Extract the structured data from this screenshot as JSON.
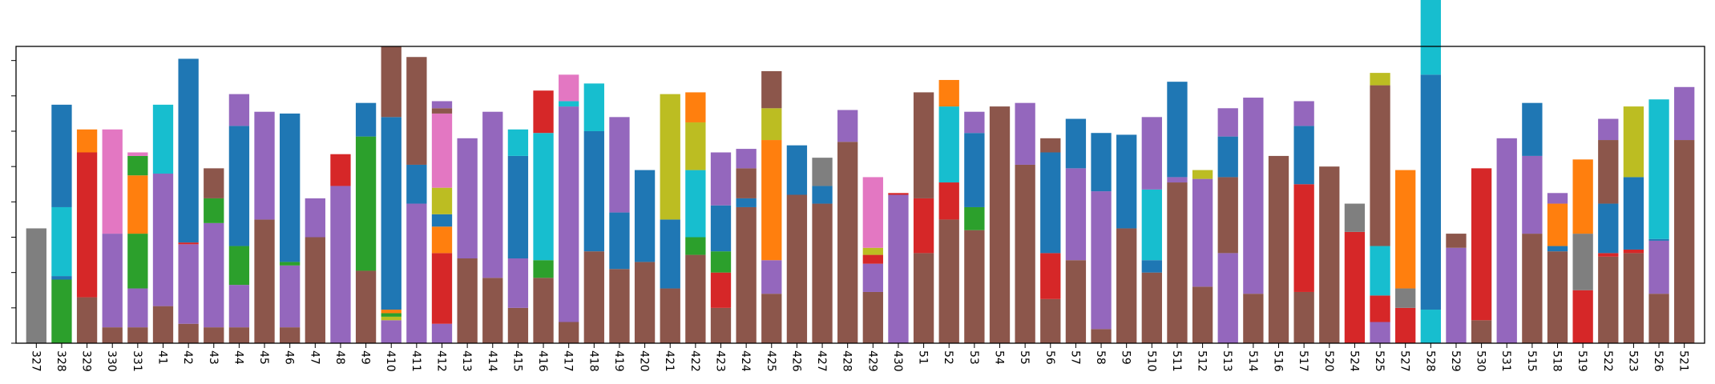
{
  "chart_data": {
    "type": "bar",
    "stacked": true,
    "categories": [
      "327",
      "328",
      "329",
      "330",
      "331",
      "41",
      "42",
      "43",
      "44",
      "45",
      "46",
      "47",
      "48",
      "49",
      "410",
      "411",
      "412",
      "413",
      "414",
      "415",
      "416",
      "417",
      "418",
      "419",
      "420",
      "421",
      "422",
      "423",
      "424",
      "425",
      "426",
      "427",
      "428",
      "429",
      "430",
      "51",
      "52",
      "53",
      "54",
      "55",
      "56",
      "57",
      "58",
      "59",
      "510",
      "511",
      "512",
      "513",
      "514",
      "516",
      "517",
      "520",
      "524",
      "525",
      "527",
      "528",
      "529",
      "530",
      "531",
      "515",
      "518",
      "519",
      "522",
      "523",
      "526",
      "521"
    ],
    "ylim": [
      0,
      0.84
    ],
    "y_tick_labels_visible": false,
    "y_ticks": [
      0,
      0.1,
      0.2,
      0.3,
      0.4,
      0.5,
      0.6,
      0.7,
      0.8
    ],
    "grid": false,
    "legend": "none",
    "colors": {
      "blue": "#1f77b4",
      "orange": "#ff7f0e",
      "green": "#2ca02c",
      "red": "#d62728",
      "purple": "#9467bd",
      "brown": "#8c564b",
      "pink": "#e377c2",
      "gray": "#7f7f7f",
      "olive": "#bcbd22",
      "cyan": "#17becf"
    },
    "stacks": [
      [
        [
          "gray",
          0.325
        ]
      ],
      [
        [
          "green",
          0.18
        ],
        [
          "blue",
          0.01
        ],
        [
          "cyan",
          0.195
        ],
        [
          "blue",
          0.29
        ]
      ],
      [
        [
          "brown",
          0.13
        ],
        [
          "red",
          0.41
        ],
        [
          "orange",
          0.065
        ]
      ],
      [
        [
          "brown",
          0.045
        ],
        [
          "purple",
          0.265
        ],
        [
          "pink",
          0.295
        ]
      ],
      [
        [
          "brown",
          0.045
        ],
        [
          "purple",
          0.11
        ],
        [
          "green",
          0.155
        ],
        [
          "orange",
          0.165
        ],
        [
          "green",
          0.055
        ],
        [
          "pink",
          0.01
        ]
      ],
      [
        [
          "brown",
          0.105
        ],
        [
          "purple",
          0.375
        ],
        [
          "cyan",
          0.195
        ]
      ],
      [
        [
          "brown",
          0.055
        ],
        [
          "purple",
          0.225
        ],
        [
          "red",
          0.005
        ],
        [
          "blue",
          0.52
        ]
      ],
      [
        [
          "brown",
          0.045
        ],
        [
          "purple",
          0.295
        ],
        [
          "green",
          0.07
        ],
        [
          "brown",
          0.085
        ]
      ],
      [
        [
          "brown",
          0.045
        ],
        [
          "purple",
          0.12
        ],
        [
          "green",
          0.11
        ],
        [
          "blue",
          0.34
        ],
        [
          "purple",
          0.09
        ]
      ],
      [
        [
          "brown",
          0.35
        ],
        [
          "purple",
          0.305
        ]
      ],
      [
        [
          "brown",
          0.045
        ],
        [
          "purple",
          0.175
        ],
        [
          "green",
          0.01
        ],
        [
          "blue",
          0.42
        ]
      ],
      [
        [
          "brown",
          0.3
        ],
        [
          "purple",
          0.11
        ]
      ],
      [
        [
          "purple",
          0.445
        ],
        [
          "red",
          0.09
        ]
      ],
      [
        [
          "brown",
          0.205
        ],
        [
          "green",
          0.38
        ],
        [
          "blue",
          0.095
        ]
      ],
      [
        [
          "purple",
          0.065
        ],
        [
          "olive",
          0.01
        ],
        [
          "green",
          0.01
        ],
        [
          "orange",
          0.01
        ],
        [
          "blue",
          0.545
        ],
        [
          "brown",
          0.2
        ]
      ],
      [
        [
          "purple",
          0.395
        ],
        [
          "blue",
          0.11
        ],
        [
          "brown",
          0.305
        ]
      ],
      [
        [
          "purple",
          0.055
        ],
        [
          "red",
          0.2
        ],
        [
          "orange",
          0.075
        ],
        [
          "blue",
          0.035
        ],
        [
          "olive",
          0.075
        ],
        [
          "pink",
          0.21
        ],
        [
          "brown",
          0.015
        ],
        [
          "purple",
          0.02
        ]
      ],
      [
        [
          "brown",
          0.24
        ],
        [
          "purple",
          0.34
        ]
      ],
      [
        [
          "brown",
          0.185
        ],
        [
          "purple",
          0.47
        ]
      ],
      [
        [
          "brown",
          0.1
        ],
        [
          "purple",
          0.14
        ],
        [
          "blue",
          0.29
        ],
        [
          "cyan",
          0.075
        ]
      ],
      [
        [
          "brown",
          0.185
        ],
        [
          "green",
          0.05
        ],
        [
          "cyan",
          0.36
        ],
        [
          "red",
          0.12
        ]
      ],
      [
        [
          "brown",
          0.06
        ],
        [
          "purple",
          0.61
        ],
        [
          "cyan",
          0.015
        ],
        [
          "pink",
          0.075
        ]
      ],
      [
        [
          "brown",
          0.26
        ],
        [
          "blue",
          0.34
        ],
        [
          "cyan",
          0.135
        ]
      ],
      [
        [
          "brown",
          0.21
        ],
        [
          "blue",
          0.16
        ],
        [
          "purple",
          0.27
        ]
      ],
      [
        [
          "brown",
          0.23
        ],
        [
          "blue",
          0.26
        ]
      ],
      [
        [
          "brown",
          0.155
        ],
        [
          "blue",
          0.195
        ],
        [
          "olive",
          0.355
        ]
      ],
      [
        [
          "brown",
          0.25
        ],
        [
          "green",
          0.05
        ],
        [
          "cyan",
          0.19
        ],
        [
          "olive",
          0.135
        ],
        [
          "orange",
          0.085
        ]
      ],
      [
        [
          "brown",
          0.1
        ],
        [
          "red",
          0.1
        ],
        [
          "green",
          0.06
        ],
        [
          "blue",
          0.13
        ],
        [
          "purple",
          0.15
        ]
      ],
      [
        [
          "brown",
          0.385
        ],
        [
          "blue",
          0.025
        ],
        [
          "brown",
          0.085
        ],
        [
          "purple",
          0.055
        ]
      ],
      [
        [
          "brown",
          0.14
        ],
        [
          "purple",
          0.095
        ],
        [
          "orange",
          0.34
        ],
        [
          "olive",
          0.09
        ],
        [
          "brown",
          0.105
        ]
      ],
      [
        [
          "brown",
          0.42
        ],
        [
          "blue",
          0.14
        ]
      ],
      [
        [
          "brown",
          0.395
        ],
        [
          "blue",
          0.05
        ],
        [
          "gray",
          0.08
        ]
      ],
      [
        [
          "brown",
          0.57
        ],
        [
          "purple",
          0.09
        ]
      ],
      [
        [
          "brown",
          0.145
        ],
        [
          "purple",
          0.08
        ],
        [
          "red",
          0.025
        ],
        [
          "olive",
          0.02
        ],
        [
          "pink",
          0.2
        ]
      ],
      [
        [
          "purple",
          0.42
        ],
        [
          "red",
          0.005
        ]
      ],
      [
        [
          "brown",
          0.255
        ],
        [
          "red",
          0.155
        ],
        [
          "brown",
          0.3
        ]
      ],
      [
        [
          "brown",
          0.35
        ],
        [
          "red",
          0.105
        ],
        [
          "cyan",
          0.215
        ],
        [
          "orange",
          0.075
        ]
      ],
      [
        [
          "brown",
          0.32
        ],
        [
          "green",
          0.065
        ],
        [
          "blue",
          0.21
        ],
        [
          "purple",
          0.06
        ]
      ],
      [
        [
          "brown",
          0.67
        ]
      ],
      [
        [
          "brown",
          0.505
        ],
        [
          "purple",
          0.175
        ]
      ],
      [
        [
          "brown",
          0.125
        ],
        [
          "red",
          0.13
        ],
        [
          "blue",
          0.285
        ],
        [
          "brown",
          0.04
        ]
      ],
      [
        [
          "brown",
          0.235
        ],
        [
          "purple",
          0.26
        ],
        [
          "blue",
          0.14
        ]
      ],
      [
        [
          "brown",
          0.04
        ],
        [
          "purple",
          0.39
        ],
        [
          "blue",
          0.165
        ]
      ],
      [
        [
          "brown",
          0.325
        ],
        [
          "blue",
          0.265
        ]
      ],
      [
        [
          "brown",
          0.2
        ],
        [
          "blue",
          0.035
        ],
        [
          "cyan",
          0.2
        ],
        [
          "purple",
          0.205
        ]
      ],
      [
        [
          "brown",
          0.455
        ],
        [
          "purple",
          0.015
        ],
        [
          "blue",
          0.27
        ]
      ],
      [
        [
          "brown",
          0.16
        ],
        [
          "purple",
          0.305
        ],
        [
          "olive",
          0.025
        ]
      ],
      [
        [
          "purple",
          0.255
        ],
        [
          "brown",
          0.215
        ],
        [
          "blue",
          0.115
        ],
        [
          "purple",
          0.08
        ]
      ],
      [
        [
          "brown",
          0.14
        ],
        [
          "purple",
          0.555
        ]
      ],
      [
        [
          "brown",
          0.53
        ]
      ],
      [
        [
          "brown",
          0.145
        ],
        [
          "red",
          0.305
        ],
        [
          "blue",
          0.165
        ],
        [
          "purple",
          0.07
        ]
      ],
      [
        [
          "brown",
          0.5
        ]
      ],
      [
        [
          "red",
          0.315
        ],
        [
          "gray",
          0.08
        ]
      ],
      [
        [
          "purple",
          0.06
        ],
        [
          "red",
          0.075
        ],
        [
          "cyan",
          0.14
        ],
        [
          "brown",
          0.455
        ],
        [
          "olive",
          0.035
        ]
      ],
      [
        [
          "red",
          0.1
        ],
        [
          "gray",
          0.055
        ],
        [
          "orange",
          0.335
        ]
      ],
      [
        [
          "cyan",
          0.095
        ],
        [
          "blue",
          0.665
        ],
        [
          "cyan",
          0.22
        ]
      ],
      [
        [
          "purple",
          0.27
        ],
        [
          "brown",
          0.04
        ]
      ],
      [
        [
          "brown",
          0.065
        ],
        [
          "red",
          0.43
        ]
      ],
      [
        [
          "purple",
          0.58
        ]
      ],
      [
        [
          "brown",
          0.31
        ],
        [
          "purple",
          0.22
        ],
        [
          "blue",
          0.15
        ]
      ],
      [
        [
          "brown",
          0.26
        ],
        [
          "blue",
          0.015
        ],
        [
          "orange",
          0.12
        ],
        [
          "purple",
          0.03
        ]
      ],
      [
        [
          "red",
          0.15
        ],
        [
          "gray",
          0.16
        ],
        [
          "orange",
          0.21
        ]
      ],
      [
        [
          "brown",
          0.245
        ],
        [
          "red",
          0.01
        ],
        [
          "blue",
          0.14
        ],
        [
          "brown",
          0.18
        ],
        [
          "purple",
          0.06
        ]
      ],
      [
        [
          "brown",
          0.255
        ],
        [
          "red",
          0.01
        ],
        [
          "blue",
          0.205
        ],
        [
          "olive",
          0.2
        ]
      ],
      [
        [
          "brown",
          0.14
        ],
        [
          "purple",
          0.15
        ],
        [
          "blue",
          0.005
        ],
        [
          "cyan",
          0.395
        ]
      ],
      [
        [
          "brown",
          0.575
        ],
        [
          "purple",
          0.15
        ]
      ]
    ]
  }
}
